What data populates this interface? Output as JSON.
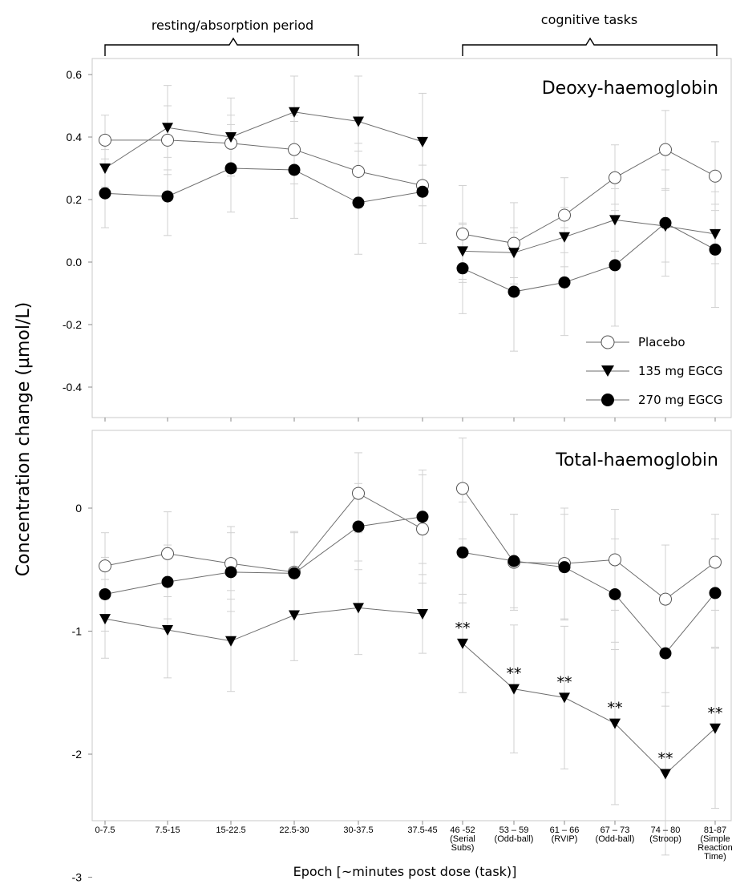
{
  "chart_data": [
    {
      "type": "line",
      "title": "Deoxy-haemoglobin",
      "ylabel": "Concentration change (µmol/L)",
      "xlabel": "Epoch [~minutes post dose (task)]",
      "ylim": [
        -0.5,
        0.65
      ],
      "yticks": [
        "0.6",
        "0.4",
        "0.2",
        "0.0",
        "-0.2",
        "-0.4"
      ],
      "ytick_values": [
        0.6,
        0.4,
        0.2,
        0.0,
        -0.2,
        -0.4
      ],
      "categories": [
        "0-7.5",
        "7.5-15",
        "15-22.5",
        "22.5-30",
        "30-37.5",
        "37.5-45",
        "46 -52 (Serial Subs)",
        "53 – 59 (Odd-ball)",
        "61 – 66 (RVIP)",
        "67 – 73 (Odd-ball)",
        "74 – 80 (Stroop)",
        "81-87 (Simple Reaction Time)"
      ],
      "segments": [
        [
          0,
          5
        ],
        [
          6,
          11
        ]
      ],
      "legend": "inside-right",
      "series": [
        {
          "name": "Placebo",
          "marker": "open-circle",
          "values": [
            0.39,
            0.39,
            0.38,
            0.36,
            0.29,
            0.245,
            0.09,
            0.06,
            0.15,
            0.27,
            0.36,
            0.275
          ],
          "err_hi": [
            0.47,
            0.5,
            0.47,
            0.47,
            0.38,
            0.31,
            0.245,
            0.19,
            0.27,
            0.375,
            0.485,
            0.385
          ],
          "err_lo": [
            0.31,
            0.28,
            0.29,
            0.25,
            0.2,
            0.18,
            -0.065,
            -0.07,
            0.03,
            0.165,
            0.235,
            0.165
          ]
        },
        {
          "name": "135 mg EGCG",
          "marker": "triangle-down",
          "values": [
            0.3,
            0.43,
            0.4,
            0.48,
            0.45,
            0.385,
            0.035,
            0.03,
            0.08,
            0.135,
            0.115,
            0.09
          ],
          "err_hi": [
            0.36,
            0.565,
            0.525,
            0.595,
            0.595,
            0.54,
            0.125,
            0.11,
            0.175,
            0.235,
            0.23,
            0.185
          ],
          "err_lo": [
            0.24,
            0.295,
            0.275,
            0.365,
            0.305,
            0.23,
            -0.055,
            -0.05,
            -0.015,
            0.035,
            0.0,
            -0.005
          ]
        },
        {
          "name": "270 mg EGCG",
          "marker": "filled-circle",
          "values": [
            0.22,
            0.21,
            0.3,
            0.295,
            0.19,
            0.225,
            -0.02,
            -0.095,
            -0.065,
            -0.01,
            0.125,
            0.04
          ],
          "err_hi": [
            0.33,
            0.335,
            0.44,
            0.45,
            0.355,
            0.39,
            0.12,
            0.095,
            0.11,
            0.185,
            0.295,
            0.225
          ],
          "err_lo": [
            0.11,
            0.085,
            0.16,
            0.14,
            0.025,
            0.06,
            -0.165,
            -0.285,
            -0.235,
            -0.205,
            -0.045,
            -0.145
          ]
        }
      ]
    },
    {
      "type": "line",
      "title": "Total-haemoglobin",
      "ylabel": "Concentration change (µmol/L)",
      "xlabel": "Epoch [~minutes post dose (task)]",
      "ylim": [
        -3.4,
        0.8
      ],
      "yticks": [
        "0",
        "-1",
        "-2",
        "-3"
      ],
      "ytick_values": [
        0,
        -1,
        -2,
        -3
      ],
      "categories": [
        "0-7.5",
        "7.5-15",
        "15-22.5",
        "22.5-30",
        "30-37.5",
        "37.5-45",
        "46 -52 (Serial Subs)",
        "53 – 59 (Odd-ball)",
        "61 – 66 (RVIP)",
        "67 – 73 (Odd-ball)",
        "74 – 80 (Stroop)",
        "81-87 (Simple Reaction Time)"
      ],
      "segments": [
        [
          0,
          5
        ],
        [
          6,
          11
        ]
      ],
      "series": [
        {
          "name": "Placebo",
          "marker": "open-circle",
          "values": [
            -0.47,
            -0.37,
            -0.45,
            -0.52,
            0.12,
            -0.17,
            0.16,
            -0.44,
            -0.45,
            -0.42,
            -0.74,
            -0.44
          ],
          "err_hi": [
            -0.2,
            -0.03,
            -0.15,
            -0.19,
            0.45,
            0.27,
            0.57,
            -0.05,
            0.0,
            -0.01,
            -0.3,
            -0.05
          ],
          "err_lo": [
            -0.74,
            -0.72,
            -0.74,
            -0.86,
            -0.2,
            -0.61,
            -0.25,
            -0.83,
            -0.9,
            -0.83,
            -1.18,
            -0.83
          ]
        },
        {
          "name": "135 mg EGCG",
          "marker": "triangle-down",
          "values": [
            -0.9,
            -0.99,
            -1.08,
            -0.87,
            -0.81,
            -0.86,
            -1.1,
            -1.47,
            -1.54,
            -1.75,
            -2.16,
            -1.79
          ],
          "err_hi": [
            -0.58,
            -0.6,
            -0.67,
            -0.5,
            -0.43,
            -0.54,
            -0.7,
            -0.95,
            -0.96,
            -1.09,
            -1.5,
            -1.14
          ],
          "err_lo": [
            -1.22,
            -1.38,
            -1.49,
            -1.24,
            -1.19,
            -1.18,
            -1.5,
            -1.99,
            -2.12,
            -2.41,
            -2.82,
            -2.44
          ]
        },
        {
          "name": "270 mg EGCG",
          "marker": "filled-circle",
          "values": [
            -0.7,
            -0.6,
            -0.52,
            -0.53,
            -0.15,
            -0.07,
            -0.36,
            -0.43,
            -0.48,
            -0.7,
            -1.18,
            -0.69
          ],
          "err_hi": [
            -0.4,
            -0.3,
            -0.2,
            -0.2,
            0.2,
            0.31,
            0.05,
            -0.05,
            -0.05,
            -0.25,
            -0.75,
            -0.25
          ],
          "err_lo": [
            -1.0,
            -0.9,
            -0.84,
            -0.86,
            -0.5,
            -0.45,
            -0.77,
            -0.81,
            -0.91,
            -1.15,
            -1.61,
            -1.13
          ]
        }
      ],
      "significance": {
        "series": "135 mg EGCG",
        "indices": [
          6,
          7,
          8,
          9,
          10,
          11
        ],
        "label": "**"
      }
    }
  ],
  "labels": {
    "period_resting": "resting/absorption period",
    "period_cognitive": "cognitive tasks",
    "panel1_title": "Deoxy-haemoglobin",
    "panel2_title": "Total-haemoglobin",
    "ylabel": "Concentration change (µmol/L)",
    "xlabel": "Epoch [~minutes post dose (task)]",
    "legend_placebo": "Placebo",
    "legend_135": "135 mg EGCG",
    "legend_270": "270 mg EGCG"
  },
  "x_tick_lines": [
    [
      "0-7.5"
    ],
    [
      "7.5-15"
    ],
    [
      "15-22.5"
    ],
    [
      "22.5-30"
    ],
    [
      "30-37.5"
    ],
    [
      "37.5-45"
    ],
    [
      "46 -52",
      "(Serial",
      "Subs)"
    ],
    [
      "53 – 59",
      "(Odd-ball)"
    ],
    [
      "61 – 66",
      "(RVIP)"
    ],
    [
      "67 – 73",
      "(Odd-ball)"
    ],
    [
      "74 – 80",
      "(Stroop)"
    ],
    [
      "81-87",
      "(Simple",
      "Reaction",
      "Time)"
    ]
  ]
}
